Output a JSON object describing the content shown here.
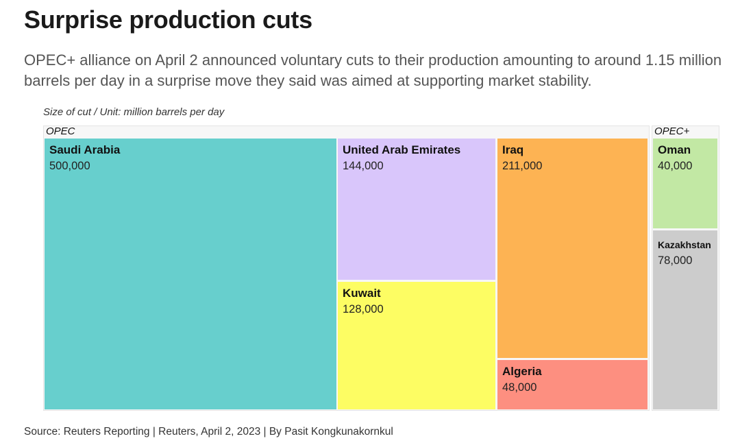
{
  "title": "Surprise production cuts",
  "subtitle": "OPEC+ alliance on April 2 announced voluntary cuts to their production amounting to around 1.15 million barrels per day in a surprise move they said was aimed at supporting market stability.",
  "unit_label": "Size of cut / Unit: million barrels per day",
  "source": "Source: Reuters Reporting | Reuters, April 2, 2023 | By Pasit Kongkunakornkul",
  "chart_data": {
    "type": "treemap",
    "groups": [
      {
        "name": "OPEC",
        "items": [
          {
            "name": "Saudi Arabia",
            "label": "500,000",
            "value": 500000,
            "color": "#67cfcd"
          },
          {
            "name": "United Arab Emirates",
            "label": "144,000",
            "value": 144000,
            "color": "#d9c6fb"
          },
          {
            "name": "Kuwait",
            "label": "128,000",
            "value": 128000,
            "color": "#fdfd63"
          },
          {
            "name": "Iraq",
            "label": "211,000",
            "value": 211000,
            "color": "#fdb353"
          },
          {
            "name": "Algeria",
            "label": "48,000",
            "value": 48000,
            "color": "#fd8f80"
          }
        ]
      },
      {
        "name": "OPEC+",
        "items": [
          {
            "name": "Oman",
            "label": "40,000",
            "value": 40000,
            "color": "#c2e8a4"
          },
          {
            "name": "Kazakhstan",
            "label": "78,000",
            "value": 78000,
            "color": "#cccccc"
          }
        ]
      }
    ]
  }
}
